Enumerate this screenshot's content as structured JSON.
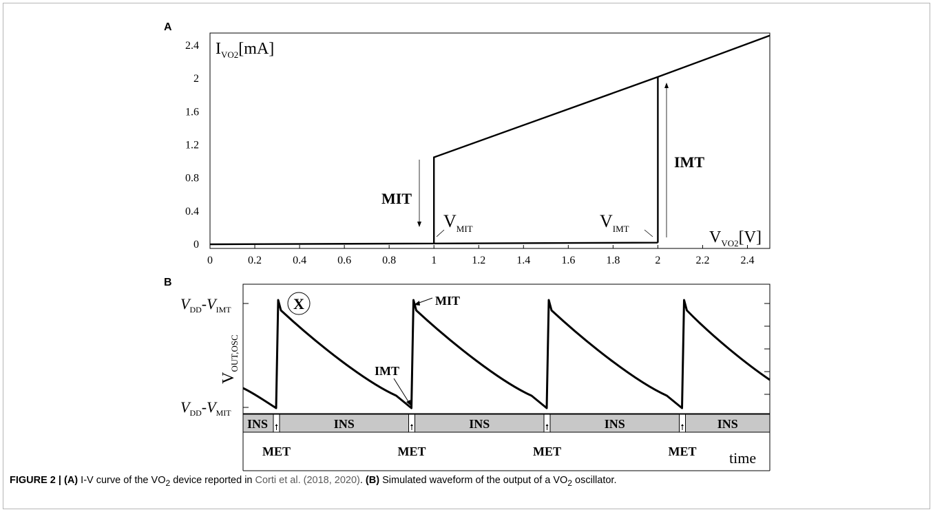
{
  "panels": {
    "a_label": "A",
    "b_label": "B"
  },
  "chart_data": [
    {
      "type": "line",
      "panel": "A",
      "ylabel": "I_VO2[mA]",
      "xlabel": "V_VO2[V]",
      "xlim": [
        0,
        2.5
      ],
      "ylim": [
        -0.05,
        2.55
      ],
      "x_ticks": [
        "0",
        "0.2",
        "0.4",
        "0.6",
        "0.8",
        "1",
        "1.2",
        "1.4",
        "1.6",
        "1.8",
        "2",
        "2.2",
        "2.4"
      ],
      "y_ticks": [
        "0",
        "0.4",
        "0.8",
        "1.2",
        "1.6",
        "2",
        "2.4"
      ],
      "series": [
        {
          "segments": [
            [
              [
                0,
                0.0
              ],
              [
                1.0,
                0.01
              ],
              [
                2.0,
                0.02
              ]
            ],
            [
              [
                1.0,
                0.0
              ],
              [
                1.0,
                1.05
              ],
              [
                2.0,
                2.02
              ],
              [
                2.5,
                2.52
              ]
            ],
            [
              [
                2.0,
                0.02
              ],
              [
                2.0,
                2.02
              ]
            ]
          ]
        }
      ],
      "annotations": {
        "mit": "MIT",
        "imt": "IMT",
        "v_mit": "V_MIT",
        "v_imt": "V_IMT"
      }
    },
    {
      "type": "line",
      "panel": "B",
      "ylabel": "V_OUT,OSC",
      "xlabel": "time",
      "y_ticks": [
        "V_DD-V_IMT",
        "V_DD-V_MIT"
      ],
      "periods": 4,
      "bar_labels": {
        "ins": "INS",
        "met": "MET"
      },
      "annotations": {
        "mit": "MIT",
        "imt": "IMT",
        "x": "X"
      }
    }
  ],
  "caption": {
    "prefix": "FIGURE 2 | ",
    "a": "(A)",
    "a_text": " I-V curve of the VO",
    "a_sub": "2",
    "a_text2": " device reported in ",
    "citation": "Corti et al. (2018, 2020)",
    "a_end": ". ",
    "b": "(B)",
    "b_text": " Simulated waveform of the output of a VO",
    "b_sub": "2",
    "b_end": " oscillator."
  }
}
